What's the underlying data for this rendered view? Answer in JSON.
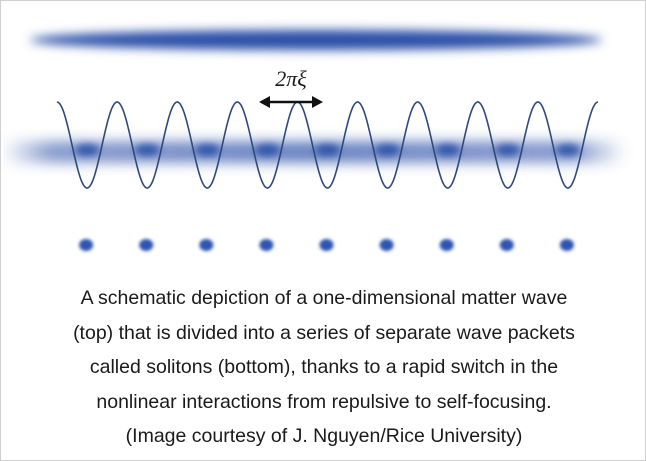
{
  "figure": {
    "spacing_label": "2πξ",
    "colors": {
      "matter_wave": "#2b4fa8",
      "sinusoid": "#2f4a7a",
      "arrow": "#111111",
      "soliton": "#2d54b0"
    },
    "soliton_count": 9,
    "wave_periods": 9
  },
  "caption": {
    "lines": [
      "A schematic depiction of a one-dimensional matter wave",
      "(top) that is divided into a series of separate wave packets",
      "called solitons (bottom), thanks to a rapid switch in the",
      "nonlinear interactions from repulsive to self-focusing.",
      "(Image courtesy of J. Nguyen/Rice University)"
    ]
  }
}
